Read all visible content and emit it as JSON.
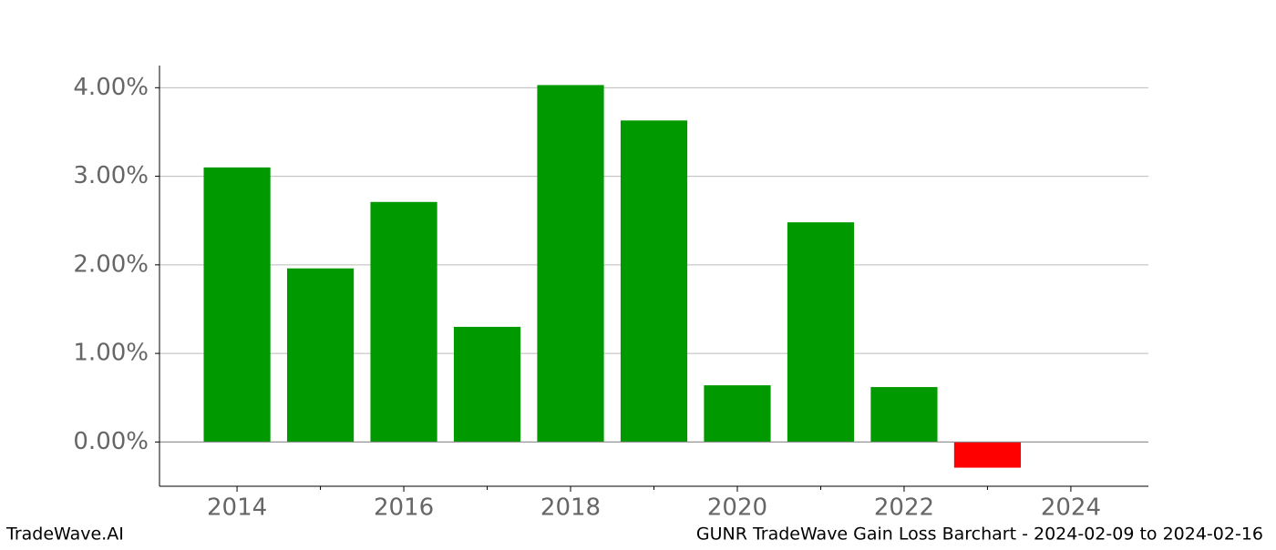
{
  "chart_data": {
    "type": "bar",
    "title": "GUNR TradeWave Gain Loss Barchart - 2024-02-09 to 2024-02-16",
    "watermark": "TradeWave.AI",
    "x": [
      2014,
      2015,
      2016,
      2017,
      2018,
      2019,
      2020,
      2021,
      2022,
      2023
    ],
    "values": [
      3.1,
      1.96,
      2.71,
      1.3,
      4.03,
      3.63,
      0.64,
      2.48,
      0.62,
      -0.29
    ],
    "colors": [
      "#009900",
      "#009900",
      "#009900",
      "#009900",
      "#009900",
      "#009900",
      "#009900",
      "#009900",
      "#009900",
      "#ff0000"
    ],
    "xlim": [
      2013.07,
      2024.93
    ],
    "xticks": [
      2014,
      2016,
      2018,
      2020,
      2022,
      2024
    ],
    "xminorticks": [
      2015,
      2017,
      2019,
      2021,
      2023
    ],
    "ylim": [
      -0.5,
      4.25
    ],
    "yticks": [
      {
        "value": 0,
        "label": "0.00%"
      },
      {
        "value": 1,
        "label": "1.00%"
      },
      {
        "value": 2,
        "label": "2.00%"
      },
      {
        "value": 3,
        "label": "3.00%"
      },
      {
        "value": 4,
        "label": "4.00%"
      }
    ],
    "grid": true
  }
}
